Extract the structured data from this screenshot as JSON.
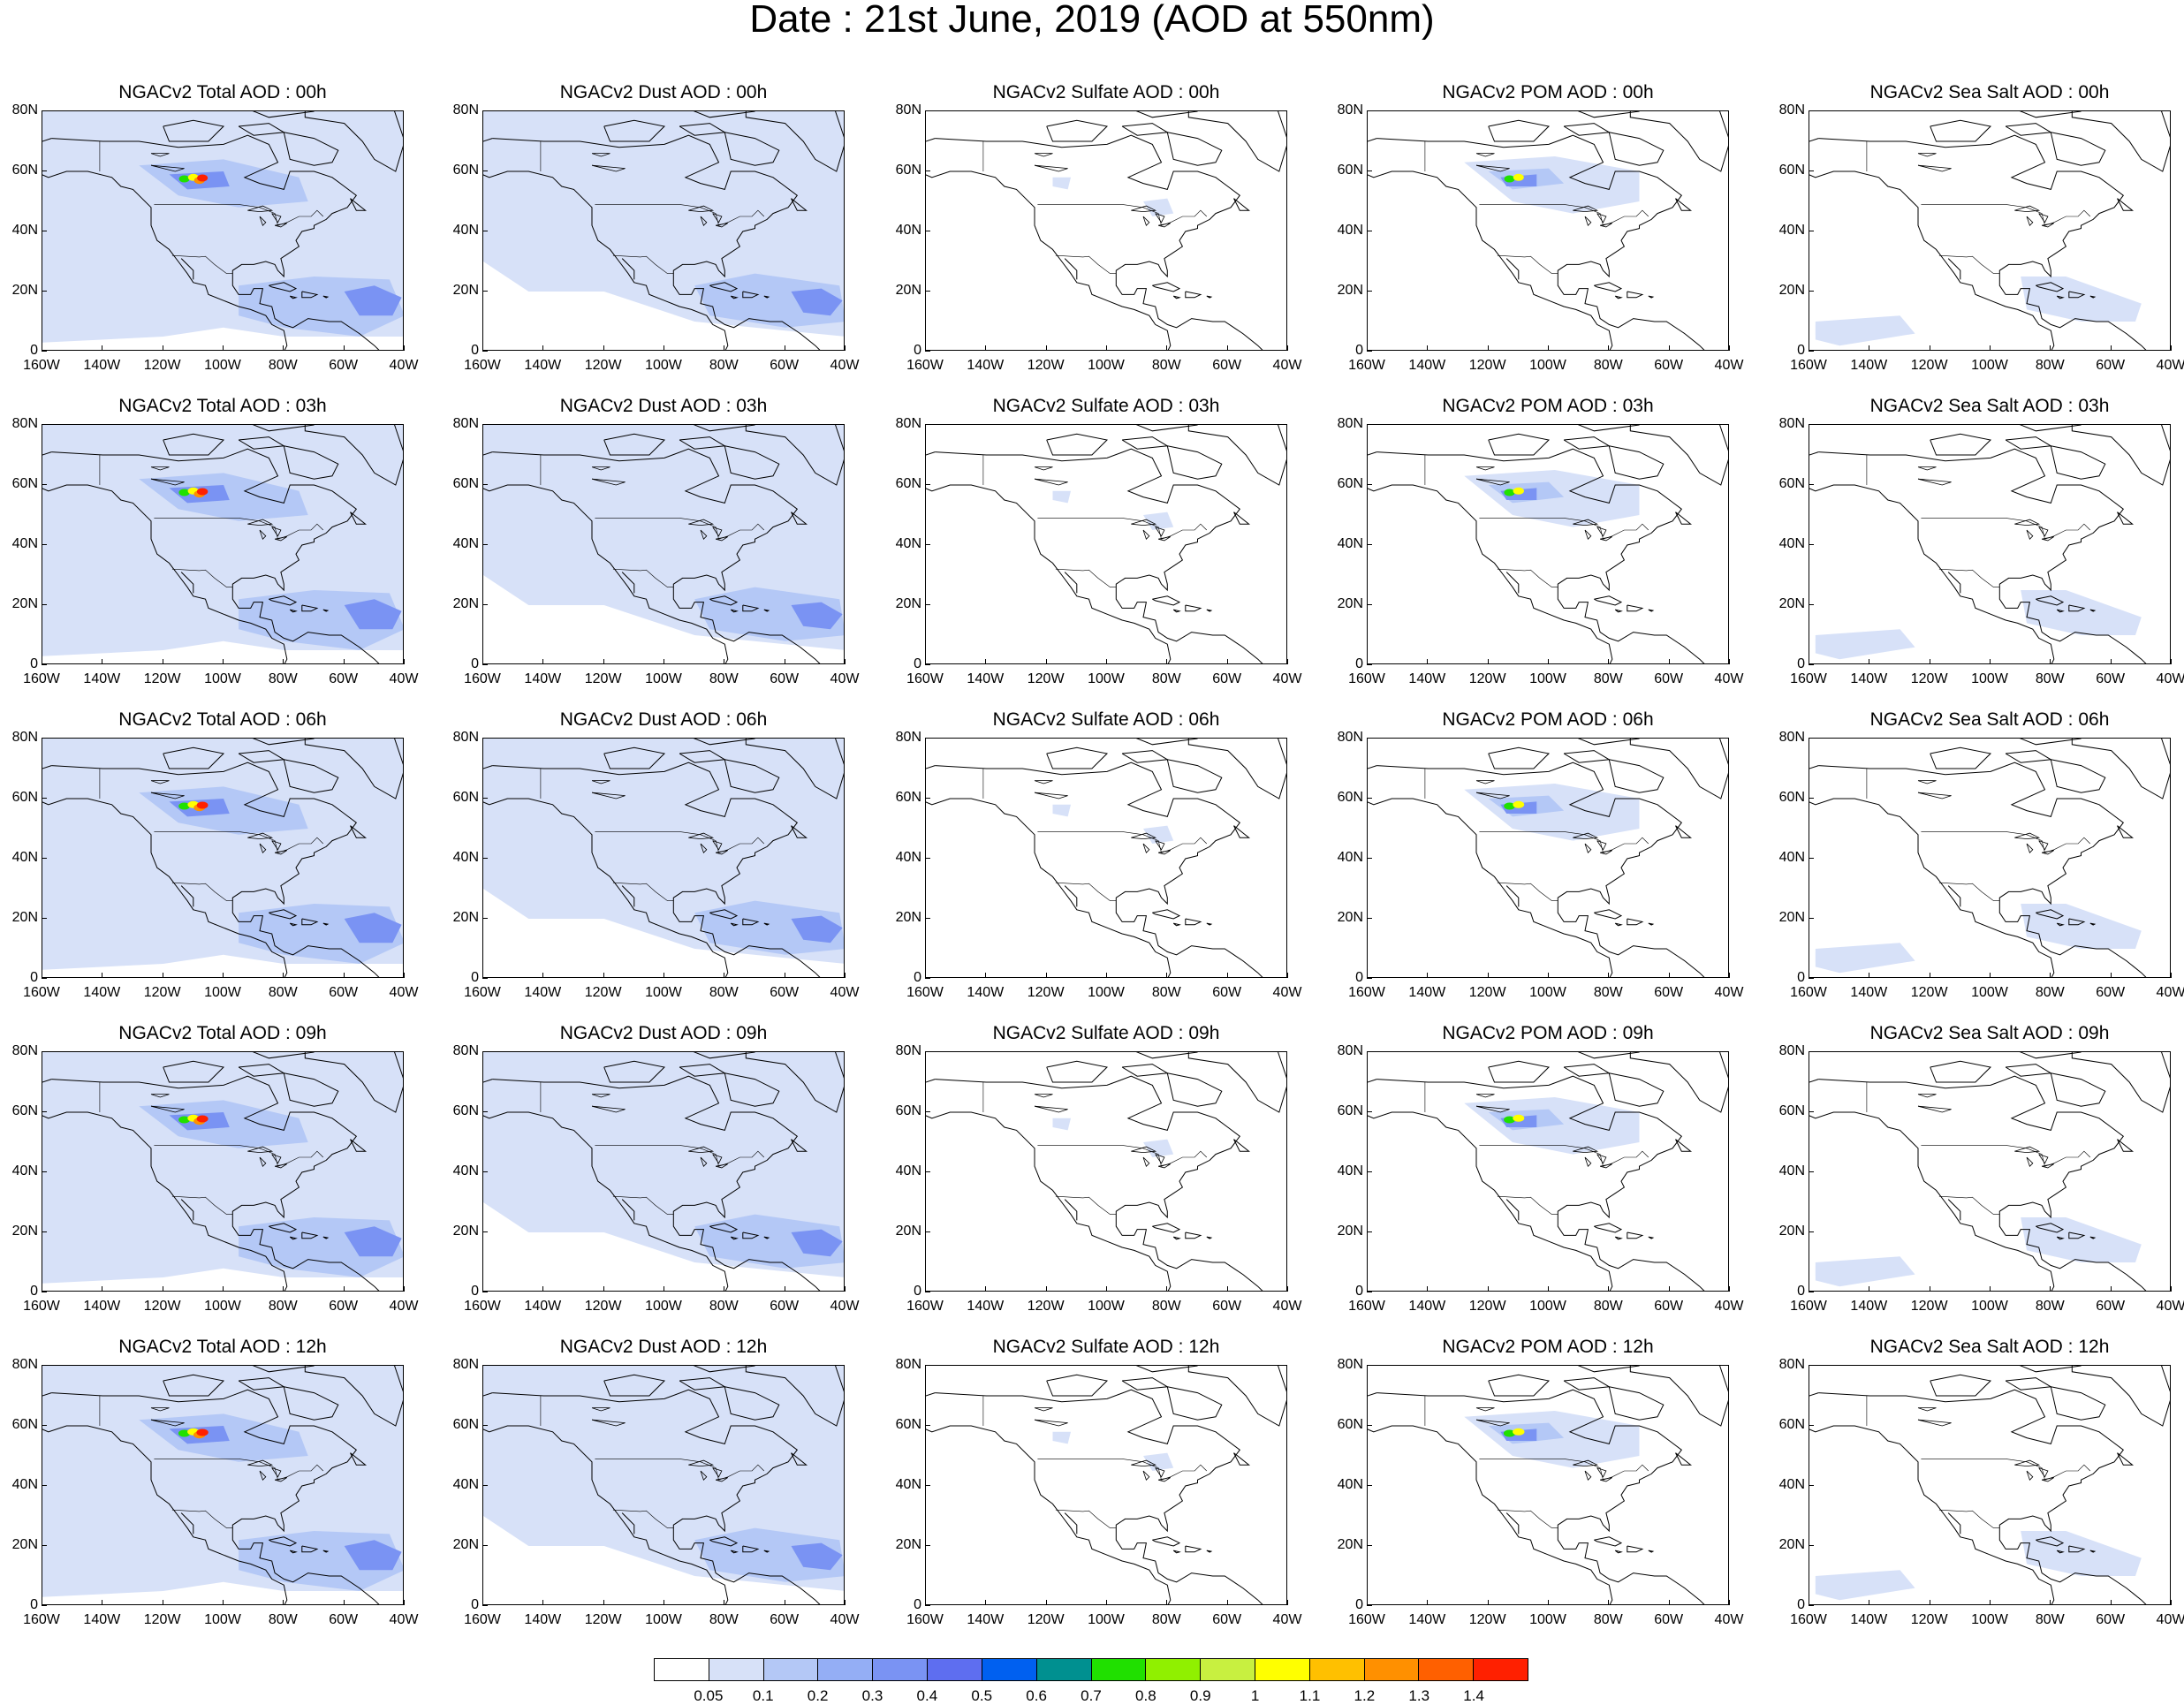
{
  "title": "Date : 21st June, 2019 (AOD at 550nm)",
  "panel_titles": [
    [
      "NGACv2 Total AOD : 00h",
      "NGACv2 Dust AOD : 00h",
      "NGACv2 Sulfate AOD : 00h",
      "NGACv2 POM AOD : 00h",
      "NGACv2 Sea Salt AOD : 00h"
    ],
    [
      "NGACv2 Total AOD : 03h",
      "NGACv2 Dust AOD : 03h",
      "NGACv2 Sulfate AOD : 03h",
      "NGACv2 POM AOD : 03h",
      "NGACv2 Sea Salt AOD : 03h"
    ],
    [
      "NGACv2 Total AOD : 06h",
      "NGACv2 Dust AOD : 06h",
      "NGACv2 Sulfate AOD : 06h",
      "NGACv2 POM AOD : 06h",
      "NGACv2 Sea Salt AOD : 06h"
    ],
    [
      "NGACv2 Total AOD : 09h",
      "NGACv2 Dust AOD : 09h",
      "NGACv2 Sulfate AOD : 09h",
      "NGACv2 POM AOD : 09h",
      "NGACv2 Sea Salt  AOD : 09h"
    ],
    [
      "NGACv2 Total AOD  : 12h",
      "NGACv2 Dust AOD : 12h",
      "NGACv2 Sulfate AOD : 12h",
      "NGACv2 POM  AOD : 12h",
      "NGACv2 Sea Salt  AOD : 12h"
    ]
  ],
  "lat_labels": [
    "80N",
    "60N",
    "40N",
    "20N",
    "0"
  ],
  "lon_labels": [
    "160W",
    "140W",
    "120W",
    "100W",
    "80W",
    "60W",
    "40W"
  ],
  "map_extent": {
    "lon": [
      -160,
      -40
    ],
    "lat": [
      0,
      80
    ]
  },
  "colorbar": {
    "labels": [
      "0.05",
      "0.1",
      "0.2",
      "0.3",
      "0.4",
      "0.5",
      "0.6",
      "0.7",
      "0.8",
      "0.9",
      "1",
      "1.1",
      "1.2",
      "1.3",
      "1.4"
    ],
    "colors": [
      "#ffffff",
      "#d7e1f8",
      "#b4c8f6",
      "#94aef5",
      "#7a93f3",
      "#5e6ef0",
      "#0060f0",
      "#009090",
      "#20e000",
      "#90f000",
      "#c8f040",
      "#ffff00",
      "#ffc000",
      "#ff9000",
      "#ff6000",
      "#ff2000"
    ]
  },
  "colors": {
    "land_outline": "#000000",
    "light_blue": "#d7e1f8",
    "mid_blue": "#b4c8f6",
    "deep_blue": "#7a93f3",
    "hotspot_yellow": "#ffff00",
    "hotspot_red": "#ff2000"
  }
}
